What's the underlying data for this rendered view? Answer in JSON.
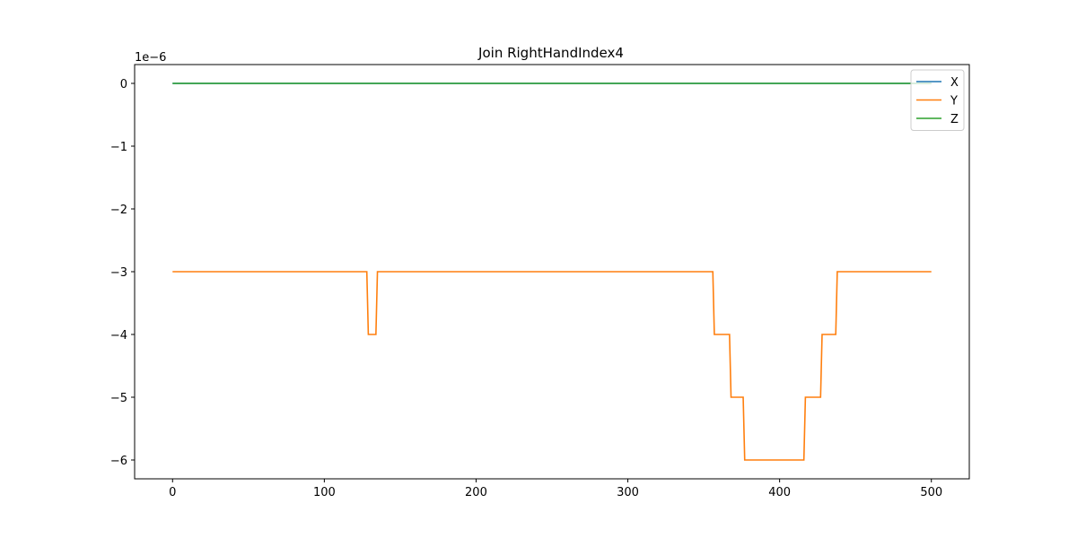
{
  "chart_data": {
    "type": "line",
    "title": "Join RightHandIndex4",
    "xlabel": "",
    "ylabel": "",
    "y_offset_label": "1e−6",
    "y_scale": 1e-06,
    "xlim": [
      -25,
      525
    ],
    "ylim": [
      -6.3,
      0.3
    ],
    "x_ticks": [
      0,
      100,
      200,
      300,
      400,
      500
    ],
    "x_tick_labels": [
      "0",
      "100",
      "200",
      "300",
      "400",
      "500"
    ],
    "y_ticks": [
      0,
      -1,
      -2,
      -3,
      -4,
      -5,
      -6
    ],
    "y_tick_labels": [
      "0",
      "−1",
      "−2",
      "−3",
      "−4",
      "−5",
      "−6"
    ],
    "grid": false,
    "legend_position": "top-right",
    "series": [
      {
        "name": "X",
        "color": "#1f77b4",
        "x": [
          0,
          500
        ],
        "y": [
          0,
          0
        ]
      },
      {
        "name": "Y",
        "color": "#ff7f0e",
        "x": [
          0,
          128,
          129,
          134,
          135,
          356,
          357,
          367,
          368,
          376,
          377,
          416,
          417,
          427,
          428,
          437,
          438,
          500
        ],
        "y": [
          -3,
          -3,
          -4,
          -4,
          -3,
          -3,
          -4,
          -4,
          -5,
          -5,
          -6,
          -6,
          -5,
          -5,
          -4,
          -4,
          -3,
          -3
        ]
      },
      {
        "name": "Z",
        "color": "#2ca02c",
        "x": [
          0,
          500
        ],
        "y": [
          0,
          0
        ]
      }
    ]
  }
}
